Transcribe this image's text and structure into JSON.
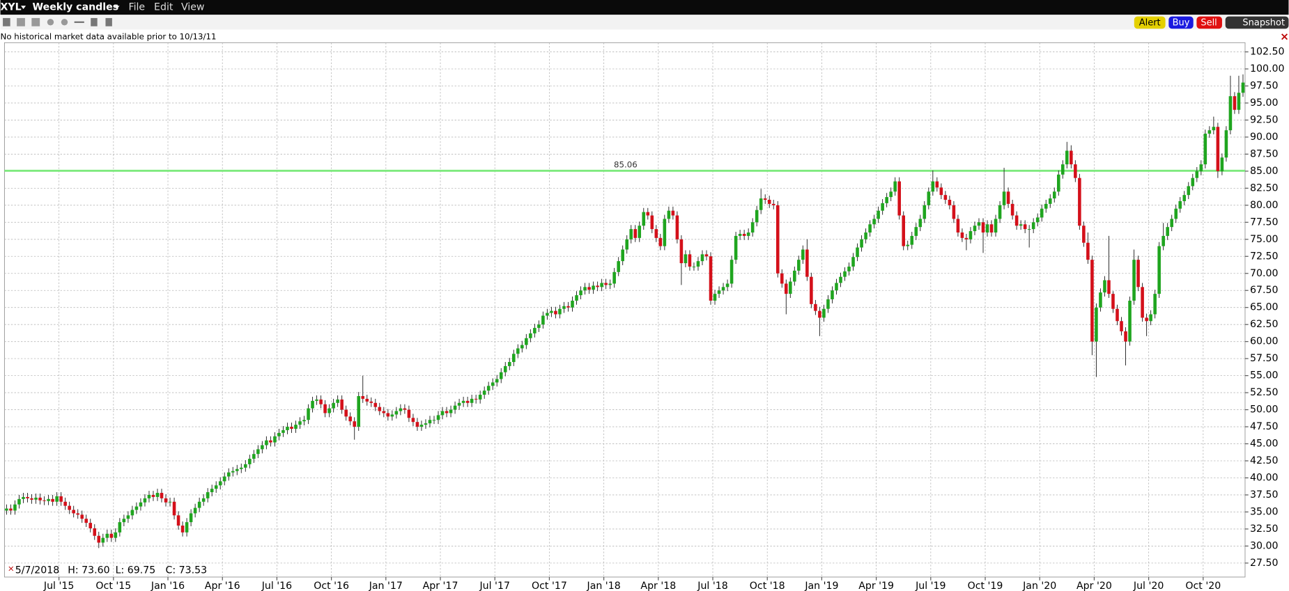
{
  "header": {
    "symbol": "XYL",
    "chart_mode": "Weekly candles",
    "menu": [
      "File",
      "Edit",
      "View"
    ],
    "buttons": [
      "Alert",
      "Buy",
      "Sell",
      "Snapshot"
    ]
  },
  "notice": "No historical market data available prior to 10/13/11",
  "chart_data": {
    "type": "candlestick",
    "open": [
      35.2,
      35.5,
      35.2,
      36.1,
      36.9,
      37.2,
      37.0,
      36.8,
      37.1,
      36.7,
      36.6,
      36.9,
      36.5,
      37.3,
      36.5,
      35.9,
      35.3,
      34.8,
      34.6,
      34.0,
      33.4,
      32.6,
      31.5,
      30.5,
      31.2,
      31.8,
      31.2,
      32.0,
      33.5,
      34.0,
      34.5,
      35.3,
      35.8,
      36.4,
      37.0,
      37.5,
      37.2,
      37.8,
      37.0,
      36.4,
      36.5,
      34.5,
      33.0,
      32.0,
      33.5,
      34.8,
      35.6,
      36.5,
      37.0,
      37.9,
      38.4,
      38.9,
      39.5,
      40.2,
      40.8,
      41.0,
      41.3,
      41.5,
      42.0,
      42.8,
      43.5,
      44.2,
      44.8,
      45.5,
      45.2,
      46.1,
      46.6,
      47.0,
      47.5,
      47.2,
      47.8,
      48.3,
      48.5,
      50.2,
      51.3,
      51.5,
      50.8,
      49.5,
      50.2,
      51.0,
      51.5,
      50.0,
      49.0,
      48.3,
      47.5,
      52.0,
      51.6,
      51.2,
      51.0,
      50.4,
      49.8,
      49.5,
      49.0,
      49.3,
      49.8,
      50.2,
      50.0,
      48.8,
      48.2,
      47.5,
      47.8,
      48.0,
      48.5,
      48.5,
      49.2,
      49.8,
      49.5,
      50.0,
      50.6,
      51.0,
      51.3,
      51.0,
      51.6,
      51.5,
      52.2,
      52.8,
      53.5,
      54.0,
      54.5,
      55.5,
      56.4,
      57.0,
      58.2,
      59.0,
      59.5,
      60.5,
      61.2,
      62.0,
      62.5,
      63.8,
      64.2,
      64.5,
      64.0,
      64.8,
      65.2,
      65.0,
      66.0,
      66.8,
      67.5,
      68.0,
      67.6,
      68.2,
      68.0,
      68.6,
      68.3,
      68.5,
      70.2,
      71.8,
      73.5,
      75.0,
      76.5,
      75.2,
      77.0,
      79.0,
      78.5,
      76.5,
      75.2,
      74.0,
      78.0,
      79.2,
      78.5,
      75.0,
      71.5,
      72.8,
      71.0,
      71.0,
      71.8,
      72.8,
      72.5,
      66.0,
      67.0,
      67.5,
      68.0,
      68.5,
      72.0,
      75.5,
      75.8,
      75.5,
      76.0,
      77.5,
      79.3,
      81.0,
      80.8,
      80.2,
      80.0,
      70.0,
      68.5,
      67.0,
      68.8,
      70.4,
      72.0,
      73.5,
      69.5,
      65.5,
      64.5,
      63.5,
      64.8,
      66.2,
      67.5,
      68.6,
      69.5,
      70.3,
      71.0,
      72.4,
      73.8,
      75.0,
      76.0,
      77.2,
      78.0,
      79.2,
      80.3,
      81.2,
      82.0,
      83.5,
      78.5,
      74.0,
      74.2,
      75.5,
      76.8,
      78.0,
      80.0,
      82.0,
      83.5,
      82.6,
      81.5,
      80.8,
      80.0,
      78.0,
      76.0,
      75.2,
      75.0,
      76.2,
      77.0,
      77.5,
      76.0,
      77.2,
      76.0,
      78.0,
      80.0,
      82.0,
      80.2,
      78.5,
      77.0,
      77.2,
      76.5,
      76.5,
      77.5,
      78.2,
      79.5,
      80.2,
      81.0,
      82.0,
      84.5,
      86.0,
      88.0,
      86.0,
      84.0,
      77.0,
      74.5,
      72.0,
      60.0,
      65.0,
      67.2,
      69.0,
      67.0,
      64.8,
      63.0,
      61.5,
      60.0,
      66.0,
      72.0,
      68.0,
      63.5,
      63.0,
      64.0,
      67.0,
      74.0,
      75.5,
      76.8,
      78.0,
      79.5,
      80.6,
      81.5,
      82.8,
      84.0,
      85.0,
      86.0,
      90.5,
      91.0,
      91.5,
      85.0,
      87.0,
      91.0,
      96.0,
      94.0,
      96.5
    ],
    "high": [
      36.1,
      36.1,
      36.7,
      37.5,
      37.8,
      37.8,
      37.6,
      37.7,
      37.7,
      37.3,
      37.5,
      37.5,
      37.9,
      37.9,
      37.1,
      36.5,
      35.9,
      35.4,
      35.2,
      34.6,
      34.0,
      33.2,
      32.1,
      31.8,
      32.4,
      32.4,
      32.6,
      34.1,
      34.6,
      35.1,
      35.9,
      36.4,
      37.0,
      37.6,
      38.1,
      38.1,
      38.4,
      38.4,
      37.6,
      37.1,
      37.1,
      35.1,
      33.6,
      34.1,
      35.4,
      36.2,
      37.1,
      37.6,
      38.5,
      39.0,
      39.5,
      40.1,
      40.8,
      41.4,
      41.6,
      41.9,
      42.1,
      42.6,
      43.4,
      44.1,
      44.8,
      45.4,
      46.1,
      46.1,
      46.7,
      47.2,
      47.6,
      48.1,
      48.1,
      48.4,
      48.9,
      49.1,
      50.8,
      51.9,
      52.1,
      52.1,
      51.4,
      50.8,
      51.6,
      52.1,
      52.1,
      50.6,
      49.6,
      48.9,
      52.6,
      55.0,
      52.2,
      51.8,
      51.6,
      51.0,
      50.4,
      50.1,
      49.9,
      50.4,
      50.8,
      50.8,
      50.6,
      49.4,
      48.8,
      48.4,
      48.6,
      49.1,
      49.1,
      49.8,
      50.4,
      50.4,
      50.6,
      51.2,
      51.6,
      51.9,
      51.9,
      52.2,
      52.2,
      52.8,
      53.4,
      54.1,
      54.6,
      55.1,
      56.1,
      57.0,
      57.6,
      58.8,
      59.6,
      60.1,
      61.1,
      61.8,
      62.6,
      63.1,
      64.4,
      64.8,
      65.1,
      65.1,
      65.4,
      65.8,
      65.8,
      66.6,
      67.4,
      68.1,
      68.6,
      68.6,
      68.8,
      68.8,
      69.2,
      69.2,
      69.1,
      70.8,
      72.4,
      74.1,
      75.6,
      77.1,
      77.1,
      77.6,
      79.6,
      79.6,
      79.1,
      77.1,
      75.8,
      78.6,
      79.8,
      79.8,
      79.1,
      75.6,
      73.4,
      73.4,
      71.6,
      72.4,
      73.4,
      73.4,
      73.1,
      67.6,
      68.1,
      68.6,
      69.1,
      72.6,
      76.1,
      76.4,
      76.4,
      76.6,
      78.1,
      79.9,
      82.4,
      81.6,
      81.4,
      80.8,
      80.6,
      70.6,
      69.1,
      69.4,
      71.0,
      72.6,
      74.1,
      75.0,
      70.1,
      66.1,
      65.1,
      65.4,
      66.8,
      68.1,
      69.2,
      70.1,
      70.9,
      71.6,
      73.0,
      74.4,
      75.6,
      76.6,
      77.8,
      78.6,
      79.8,
      80.9,
      81.8,
      82.6,
      84.1,
      84.1,
      79.1,
      74.8,
      76.1,
      77.4,
      78.6,
      80.6,
      82.6,
      85.1,
      84.1,
      83.2,
      82.1,
      81.4,
      80.6,
      78.6,
      76.6,
      75.8,
      76.8,
      77.6,
      78.1,
      78.1,
      77.8,
      77.8,
      78.6,
      80.6,
      85.5,
      82.6,
      80.8,
      79.1,
      77.8,
      77.8,
      77.1,
      78.1,
      78.8,
      80.1,
      80.8,
      81.6,
      82.6,
      85.1,
      86.6,
      89.3,
      88.8,
      86.6,
      84.6,
      77.6,
      76.0,
      72.6,
      65.6,
      67.8,
      69.6,
      75.5,
      67.4,
      65.4,
      63.6,
      62.1,
      66.6,
      73.5,
      72.6,
      68.6,
      64.1,
      64.6,
      67.6,
      74.6,
      77.4,
      77.4,
      78.6,
      80.1,
      81.2,
      82.1,
      83.4,
      84.6,
      85.6,
      86.6,
      91.1,
      91.6,
      93.0,
      92.1,
      87.6,
      91.6,
      99.0,
      96.6,
      99.0,
      99.2
    ],
    "low": [
      34.6,
      34.6,
      34.6,
      35.5,
      36.3,
      36.4,
      36.2,
      36.2,
      36.1,
      36.0,
      36.0,
      35.9,
      35.9,
      35.9,
      35.3,
      34.7,
      34.2,
      34.0,
      33.4,
      32.8,
      32.0,
      30.9,
      29.7,
      29.9,
      30.6,
      30.6,
      30.6,
      31.4,
      32.9,
      33.4,
      33.9,
      34.7,
      35.2,
      35.8,
      36.4,
      36.6,
      36.6,
      36.4,
      35.8,
      35.8,
      33.9,
      32.4,
      31.4,
      31.4,
      32.9,
      34.2,
      35.0,
      35.9,
      36.4,
      37.3,
      37.8,
      38.3,
      38.9,
      39.6,
      40.2,
      40.4,
      40.7,
      40.9,
      41.4,
      42.2,
      42.9,
      43.6,
      44.2,
      44.6,
      44.6,
      45.5,
      46.0,
      46.4,
      46.6,
      46.6,
      47.2,
      47.7,
      47.9,
      49.6,
      50.7,
      50.2,
      48.9,
      48.9,
      49.6,
      50.4,
      49.4,
      48.4,
      47.7,
      45.6,
      46.9,
      51.0,
      50.6,
      50.4,
      49.8,
      49.2,
      48.9,
      48.4,
      48.4,
      48.7,
      49.2,
      49.4,
      48.2,
      47.6,
      46.9,
      46.9,
      47.2,
      47.4,
      47.9,
      47.9,
      48.6,
      48.9,
      48.9,
      49.4,
      50.0,
      50.4,
      50.4,
      50.4,
      50.9,
      50.9,
      51.6,
      52.2,
      52.9,
      53.4,
      53.9,
      54.9,
      55.8,
      56.4,
      57.6,
      58.4,
      58.9,
      59.9,
      60.6,
      61.4,
      61.9,
      63.2,
      63.6,
      63.4,
      63.4,
      64.2,
      64.4,
      64.4,
      65.4,
      66.2,
      66.9,
      67.0,
      67.0,
      67.4,
      67.4,
      67.7,
      67.7,
      67.9,
      69.6,
      71.2,
      72.9,
      74.4,
      74.6,
      74.6,
      76.4,
      77.9,
      75.9,
      74.6,
      73.4,
      73.4,
      77.4,
      77.9,
      74.4,
      68.3,
      70.9,
      70.4,
      70.4,
      70.4,
      71.2,
      71.9,
      65.4,
      65.4,
      66.4,
      66.9,
      67.4,
      67.9,
      71.4,
      74.9,
      74.9,
      74.9,
      75.4,
      76.9,
      78.7,
      80.2,
      79.6,
      79.4,
      69.4,
      67.9,
      64.0,
      66.4,
      68.2,
      69.8,
      71.4,
      68.9,
      64.9,
      63.9,
      60.8,
      62.9,
      64.2,
      65.6,
      66.9,
      68.0,
      68.9,
      69.7,
      70.4,
      71.8,
      73.2,
      74.4,
      75.4,
      76.6,
      77.4,
      78.6,
      79.7,
      80.6,
      81.4,
      77.9,
      73.4,
      73.4,
      73.6,
      74.9,
      76.2,
      77.4,
      79.4,
      81.4,
      82.0,
      80.9,
      80.2,
      79.4,
      77.4,
      75.4,
      74.6,
      73.4,
      74.4,
      75.6,
      76.4,
      73.0,
      75.4,
      75.4,
      75.4,
      77.4,
      79.4,
      79.6,
      77.9,
      76.4,
      76.4,
      75.9,
      73.8,
      75.9,
      76.9,
      77.6,
      78.9,
      79.6,
      80.4,
      81.4,
      83.9,
      85.4,
      85.4,
      83.4,
      76.4,
      73.9,
      71.4,
      58.0,
      54.8,
      64.4,
      66.6,
      66.4,
      64.2,
      62.4,
      60.9,
      56.5,
      59.4,
      65.4,
      67.4,
      62.9,
      60.8,
      62.4,
      63.4,
      66.4,
      73.4,
      74.9,
      76.2,
      77.4,
      78.9,
      80.0,
      80.9,
      82.2,
      83.4,
      84.4,
      85.4,
      89.9,
      90.4,
      84.0,
      84.4,
      86.4,
      90.4,
      93.4,
      93.4,
      95.9
    ],
    "close": [
      35.5,
      35.2,
      36.1,
      36.9,
      37.2,
      37.0,
      36.8,
      37.1,
      36.7,
      36.6,
      36.9,
      36.5,
      37.3,
      36.5,
      35.9,
      35.3,
      34.8,
      34.6,
      34.0,
      33.4,
      32.6,
      31.5,
      30.5,
      31.2,
      31.8,
      31.2,
      32.0,
      33.5,
      34.0,
      34.5,
      35.3,
      35.8,
      36.4,
      37.0,
      37.5,
      37.2,
      37.8,
      37.0,
      36.4,
      36.5,
      34.5,
      33.0,
      32.0,
      33.5,
      34.8,
      35.6,
      36.5,
      37.0,
      37.9,
      38.4,
      38.9,
      39.5,
      40.2,
      40.8,
      41.0,
      41.3,
      41.5,
      42.0,
      42.8,
      43.5,
      44.2,
      44.8,
      45.5,
      45.2,
      46.1,
      46.6,
      47.0,
      47.5,
      47.2,
      47.8,
      48.3,
      48.5,
      50.2,
      51.3,
      51.5,
      50.8,
      49.5,
      50.2,
      51.0,
      51.5,
      50.0,
      49.0,
      48.3,
      47.5,
      52.0,
      51.6,
      51.2,
      51.0,
      50.4,
      49.8,
      49.5,
      49.0,
      49.3,
      49.8,
      50.2,
      50.0,
      48.8,
      48.2,
      47.5,
      47.8,
      48.0,
      48.5,
      48.5,
      49.2,
      49.8,
      49.5,
      50.0,
      50.6,
      51.0,
      51.3,
      51.0,
      51.6,
      51.5,
      52.2,
      52.8,
      53.5,
      54.0,
      54.5,
      55.5,
      56.4,
      57.0,
      58.2,
      59.0,
      59.5,
      60.5,
      61.2,
      62.0,
      62.5,
      63.8,
      64.2,
      64.5,
      64.0,
      64.8,
      65.2,
      65.0,
      66.0,
      66.8,
      67.5,
      68.0,
      67.6,
      68.2,
      68.0,
      68.6,
      68.3,
      68.5,
      70.2,
      71.8,
      73.5,
      75.0,
      76.5,
      75.2,
      77.0,
      79.0,
      78.5,
      76.5,
      75.2,
      74.0,
      78.0,
      79.2,
      78.5,
      75.0,
      71.5,
      72.8,
      71.0,
      71.0,
      71.8,
      72.8,
      72.5,
      66.0,
      67.0,
      67.5,
      68.0,
      68.5,
      72.0,
      75.5,
      75.8,
      75.5,
      76.0,
      77.5,
      79.3,
      81.0,
      80.8,
      80.2,
      80.0,
      70.0,
      68.5,
      67.0,
      68.8,
      70.4,
      72.0,
      73.5,
      69.5,
      65.5,
      64.5,
      63.5,
      64.8,
      66.2,
      67.5,
      68.6,
      69.5,
      70.3,
      71.0,
      72.4,
      73.8,
      75.0,
      76.0,
      77.2,
      78.0,
      79.2,
      80.3,
      81.2,
      82.0,
      83.5,
      78.5,
      74.0,
      74.2,
      75.5,
      76.8,
      78.0,
      80.0,
      82.0,
      83.5,
      82.6,
      81.5,
      80.8,
      80.0,
      78.0,
      76.0,
      75.2,
      75.0,
      76.2,
      77.0,
      77.5,
      76.0,
      77.2,
      76.0,
      78.0,
      80.0,
      82.0,
      80.2,
      78.5,
      77.0,
      77.2,
      76.5,
      76.5,
      77.5,
      78.2,
      79.5,
      80.2,
      81.0,
      82.0,
      84.5,
      86.0,
      88.0,
      86.0,
      84.0,
      77.0,
      74.5,
      72.0,
      60.0,
      65.0,
      67.2,
      69.0,
      67.0,
      64.8,
      63.0,
      61.5,
      60.0,
      66.0,
      72.0,
      68.0,
      63.5,
      63.0,
      64.0,
      67.0,
      74.0,
      75.5,
      76.8,
      78.0,
      79.5,
      80.6,
      81.5,
      82.8,
      84.0,
      85.0,
      86.0,
      90.5,
      91.0,
      91.5,
      85.0,
      87.0,
      91.0,
      96.0,
      94.0,
      96.5,
      98.0
    ],
    "up_color": "#1fa51f",
    "down_color": "#d4101a",
    "xlim": [
      0,
      296
    ],
    "xticks": [
      {
        "value": 13,
        "label": "Jul '15"
      },
      {
        "value": 26,
        "label": "Oct '15"
      },
      {
        "value": 39,
        "label": "Jan '16"
      },
      {
        "value": 52,
        "label": "Apr '16"
      },
      {
        "value": 65,
        "label": "Jul '16"
      },
      {
        "value": 78,
        "label": "Oct '16"
      },
      {
        "value": 91,
        "label": "Jan '17"
      },
      {
        "value": 104,
        "label": "Apr '17"
      },
      {
        "value": 117,
        "label": "Jul '17"
      },
      {
        "value": 130,
        "label": "Oct '17"
      },
      {
        "value": 143,
        "label": "Jan '18"
      },
      {
        "value": 156,
        "label": "Apr '18"
      },
      {
        "value": 169,
        "label": "Jul '18"
      },
      {
        "value": 182,
        "label": "Oct '18"
      },
      {
        "value": 195,
        "label": "Jan '19"
      },
      {
        "value": 208,
        "label": "Apr '19"
      },
      {
        "value": 221,
        "label": "Jul '19"
      },
      {
        "value": 234,
        "label": "Oct '19"
      },
      {
        "value": 247,
        "label": "Jan '20"
      },
      {
        "value": 260,
        "label": "Apr '20"
      },
      {
        "value": 273,
        "label": "Jul '20"
      },
      {
        "value": 286,
        "label": "Oct '20"
      }
    ],
    "ylim": [
      25.45,
      103.85
    ],
    "yticks": [
      {
        "value": 27.5,
        "label": "27.50"
      },
      {
        "value": 30,
        "label": "30.00"
      },
      {
        "value": 32.5,
        "label": "32.50"
      },
      {
        "value": 35,
        "label": "35.00"
      },
      {
        "value": 37.5,
        "label": "37.50"
      },
      {
        "value": 40,
        "label": "40.00"
      },
      {
        "value": 42.5,
        "label": "42.50"
      },
      {
        "value": 45,
        "label": "45.00"
      },
      {
        "value": 47.5,
        "label": "47.50"
      },
      {
        "value": 50,
        "label": "50.00"
      },
      {
        "value": 52.5,
        "label": "52.50"
      },
      {
        "value": 55,
        "label": "55.00"
      },
      {
        "value": 57.5,
        "label": "57.50"
      },
      {
        "value": 60,
        "label": "60.00"
      },
      {
        "value": 62.5,
        "label": "62.50"
      },
      {
        "value": 65,
        "label": "65.00"
      },
      {
        "value": 67.5,
        "label": "67.50"
      },
      {
        "value": 70,
        "label": "70.00"
      },
      {
        "value": 72.5,
        "label": "72.50"
      },
      {
        "value": 75,
        "label": "75.00"
      },
      {
        "value": 77.5,
        "label": "77.50"
      },
      {
        "value": 80,
        "label": "80.00"
      },
      {
        "value": 82.5,
        "label": "82.50"
      },
      {
        "value": 85,
        "label": "85.00"
      },
      {
        "value": 87.5,
        "label": "87.50"
      },
      {
        "value": 90,
        "label": "90.00"
      },
      {
        "value": 92.5,
        "label": "92.50"
      },
      {
        "value": 95,
        "label": "95.00"
      },
      {
        "value": 97.5,
        "label": "97.50"
      },
      {
        "value": 100,
        "label": "100.00"
      },
      {
        "value": 102.5,
        "label": "102.50"
      }
    ],
    "grid": true,
    "hline": {
      "value": 85.06,
      "color": "#7dea7d"
    },
    "status": {
      "date": "5/7/2018",
      "high": "H: 73.60",
      "low": "L: 69.75",
      "close": "C: 73.53"
    }
  }
}
